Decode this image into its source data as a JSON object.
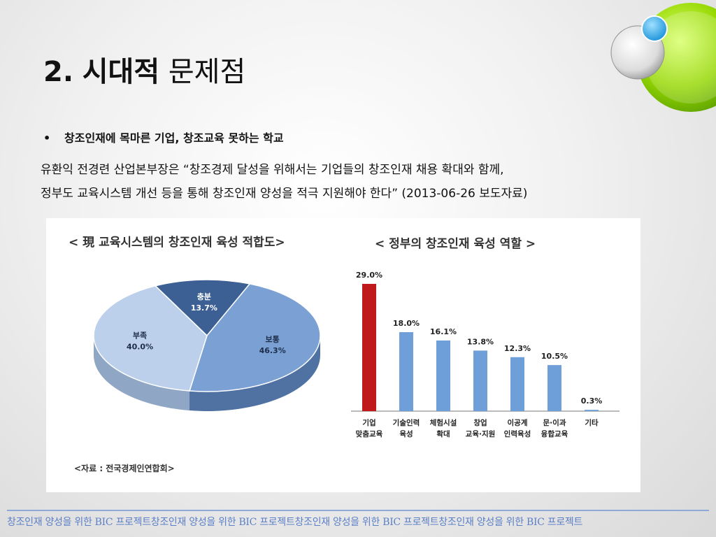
{
  "slide": {
    "title_num": "2.",
    "title_bold": "시대적",
    "title_rest": "문제점",
    "bullet_marker": "•",
    "bullet": "창조인재에 목마른 기업, 창조교육 못하는 학교",
    "quote_line1": "유환익 전경련 산업본부장은 “창조경제 달성을 위해서는 기업들의 창조인재 채용 확대와 함께,",
    "quote_line2": "정부도 교육시스템 개선 등을 통해 창조인재 양성을 적극 지원해야 한다” (2013-06-26 보도자료)",
    "source": "<자료 : 전국경제인연합회>",
    "footer": "창조인재 양성을 위한 BIC 프로젝트창조인재 양성을 위한 BIC 프로젝트창조인재 양성을 위한 BIC 프로젝트창조인재 양성을 위한 BIC 프로젝트"
  },
  "colors": {
    "pie_dark": "#3c5f94",
    "pie_mid": "#7aa0d4",
    "pie_light": "#bcd0eb",
    "bar_highlight": "#c0191c",
    "bar_normal": "#6f9fd8",
    "accent_green": "#8fd400",
    "accent_blue": "#2fa6e8"
  },
  "chart_data": [
    {
      "type": "pie",
      "title": "< 現 교육시스템의 창조인재 육성 적합도>",
      "slices": [
        {
          "label": "충분",
          "value": 13.7,
          "display": "13.7%"
        },
        {
          "label": "보통",
          "value": 46.3,
          "display": "46.3%"
        },
        {
          "label": "부족",
          "value": 40.0,
          "display": "40.0%"
        }
      ]
    },
    {
      "type": "bar",
      "title": "< 정부의 창조인재 육성 역할 >",
      "categories": [
        {
          "line1": "기업",
          "line2": "맞춤교육"
        },
        {
          "line1": "기술인력",
          "line2": "육성"
        },
        {
          "line1": "체험시설",
          "line2": "확대"
        },
        {
          "line1": "창업",
          "line2": "교육·지원"
        },
        {
          "line1": "이공계",
          "line2": "인력육성"
        },
        {
          "line1": "문·이과",
          "line2": "융합교육"
        },
        {
          "line1": "기타",
          "line2": ""
        }
      ],
      "values": [
        29.0,
        18.0,
        16.1,
        13.8,
        12.3,
        10.5,
        0.3
      ],
      "labels": [
        "29.0%",
        "18.0%",
        "16.1%",
        "13.8%",
        "12.3%",
        "10.5%",
        "0.3%"
      ]
    }
  ]
}
